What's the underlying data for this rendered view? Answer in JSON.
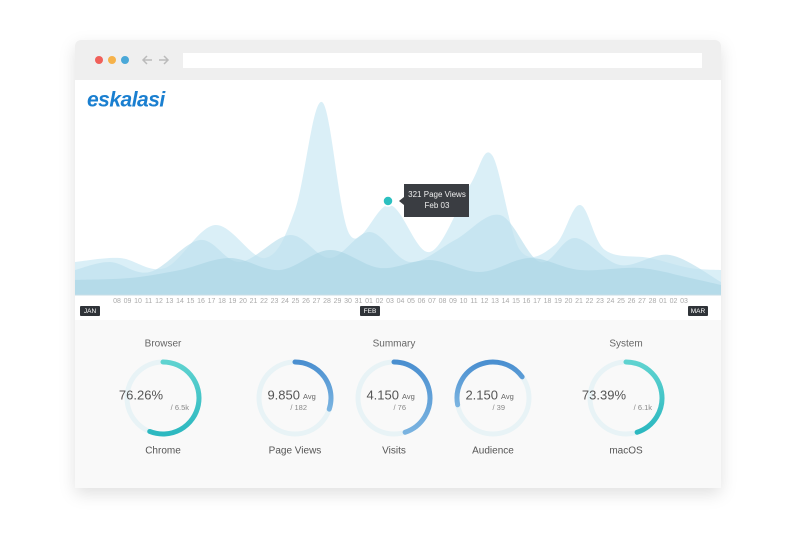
{
  "logo": "eskalasi",
  "tooltip": {
    "title": "321 Page Views",
    "date": "Feb 03"
  },
  "timeline": {
    "days": [
      "08",
      "09",
      "10",
      "11",
      "12",
      "13",
      "14",
      "15",
      "16",
      "17",
      "18",
      "19",
      "20",
      "21",
      "22",
      "23",
      "24",
      "25",
      "26",
      "27",
      "28",
      "29",
      "30",
      "31",
      "01",
      "02",
      "03",
      "04",
      "05",
      "06",
      "07",
      "08",
      "09",
      "10",
      "11",
      "12",
      "13",
      "14",
      "15",
      "16",
      "17",
      "18",
      "19",
      "20",
      "21",
      "22",
      "23",
      "24",
      "25",
      "26",
      "27",
      "28",
      "01",
      "02",
      "03"
    ],
    "months": [
      "JAN",
      "FEB",
      "MAR"
    ]
  },
  "sections": [
    "Browser",
    "Summary",
    "System"
  ],
  "gauges": [
    {
      "value": "76.26%",
      "sub": "/ 6.5k",
      "label": "Chrome"
    },
    {
      "value": "9.850",
      "avg": "Avg",
      "sub": "/ 182",
      "label": "Page Views"
    },
    {
      "value": "4.150",
      "avg": "Avg",
      "sub": "/ 76",
      "label": "Visits"
    },
    {
      "value": "2.150",
      "avg": "Avg",
      "sub": "/ 39",
      "label": "Audience"
    },
    {
      "value": "73.39%",
      "sub": "/ 6.1k",
      "label": "macOS"
    }
  ]
}
